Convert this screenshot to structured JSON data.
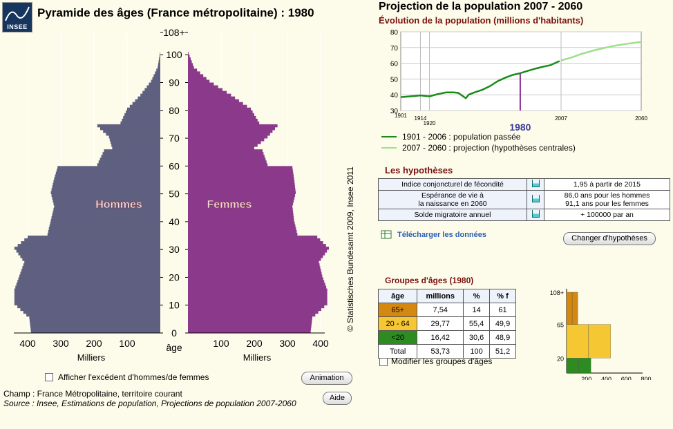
{
  "app": {
    "logo_text": "INSEE",
    "title": "Pyramide des âges (France métropolitaine) : 1980",
    "copyright": "© Statistisches Bundesamt 2009, Insee 2011"
  },
  "pyramid": {
    "labels": {
      "men": "Hommes",
      "women": "Femmes",
      "age_axis": "âge",
      "x_unit": "Milliers"
    },
    "age_ticks": [
      "108+",
      "100",
      "90",
      "80",
      "70",
      "60",
      "50",
      "40",
      "30",
      "20",
      "10",
      "0"
    ],
    "x_ticks_left": [
      "400",
      "300",
      "200",
      "100"
    ],
    "x_ticks_right": [
      "100",
      "200",
      "300",
      "400"
    ],
    "checkbox_excess": "Afficher l'excédent d'hommes/de femmes",
    "animation_button": "Animation",
    "help_button": "Aide",
    "source_line1": "Champ : France Métropolitaine, territoire courant",
    "source_line2": "Source : Insee, Estimations de population, Projections de population 2007-2060"
  },
  "projection": {
    "title": "Projection de la population 2007 - 2060",
    "subtitle": "Évolution de la population (millions d'habitants)",
    "y_ticks": [
      "80",
      "70",
      "60",
      "50",
      "40",
      "30"
    ],
    "x_ticks": [
      "1901",
      "1914",
      "1920",
      "2007",
      "2060"
    ],
    "selected_year": "1980",
    "legend_past": "1901 - 2006 : population passée",
    "legend_projection": "2007 - 2060 : projection (hypothèses centrales)",
    "colors": {
      "past": "#1a8a1a",
      "projection": "#9be08a",
      "marker": "#8a2a9a"
    }
  },
  "hypotheses": {
    "title": "Les hypothèses",
    "rows": [
      {
        "label": "Indice conjoncturel de fécondité",
        "value": "1,95 à partir de 2015"
      },
      {
        "label_line1": "Espérance de vie à",
        "label_line2": "la naissance en 2060",
        "value_line1": "86,0 ans pour les hommes",
        "value_line2": "91,1 ans pour les femmes"
      },
      {
        "label": "Solde migratoire annuel",
        "value": "+ 100000 par an"
      }
    ],
    "download_link": "Télécharger les données",
    "change_button": "Changer d'hypothèses"
  },
  "age_groups": {
    "title": "Groupes d'âges (1980)",
    "headers": [
      "âge",
      "millions",
      "%",
      "% f"
    ],
    "rows": [
      {
        "group": "65+",
        "millions": "7,54",
        "pct": "14",
        "pct_f": "61",
        "color": "#d4880f"
      },
      {
        "group": "20 - 64",
        "millions": "29,77",
        "pct": "55,4",
        "pct_f": "49,9",
        "color": "#f5c733"
      },
      {
        "group": "<20",
        "millions": "16,42",
        "pct": "30,6",
        "pct_f": "48,9",
        "color": "#2e8b22"
      }
    ],
    "total": {
      "group": "Total",
      "millions": "53,73",
      "pct": "100",
      "pct_f": "51,2"
    },
    "checkbox_modify": "Modifier les groupes d'âges",
    "mini_y_ticks": [
      "108+",
      "65",
      "20"
    ],
    "mini_x_ticks": [
      "200",
      "400",
      "600",
      "800"
    ]
  },
  "chart_data": [
    {
      "type": "bar",
      "title": "Pyramide des âges (France métropolitaine) : 1980",
      "xlabel": "Milliers",
      "ylabel": "âge",
      "series": [
        {
          "name": "Hommes",
          "color": "#5f5f80"
        },
        {
          "name": "Femmes",
          "color": "#8b3a8b"
        }
      ],
      "age_profile_men": [
        [
          0,
          390
        ],
        [
          5,
          395
        ],
        [
          10,
          440
        ],
        [
          15,
          440
        ],
        [
          20,
          425
        ],
        [
          25,
          410
        ],
        [
          30,
          440
        ],
        [
          34,
          400
        ],
        [
          35,
          340
        ],
        [
          40,
          330
        ],
        [
          45,
          320
        ],
        [
          50,
          330
        ],
        [
          55,
          320
        ],
        [
          59,
          310
        ],
        [
          60,
          190
        ],
        [
          65,
          170
        ],
        [
          66,
          145
        ],
        [
          70,
          155
        ],
        [
          74,
          190
        ],
        [
          75,
          120
        ],
        [
          80,
          100
        ],
        [
          85,
          60
        ],
        [
          90,
          28
        ],
        [
          95,
          8
        ],
        [
          100,
          1
        ]
      ],
      "age_profile_women": [
        [
          0,
          370
        ],
        [
          5,
          375
        ],
        [
          10,
          420
        ],
        [
          15,
          420
        ],
        [
          20,
          405
        ],
        [
          25,
          395
        ],
        [
          30,
          425
        ],
        [
          34,
          390
        ],
        [
          35,
          330
        ],
        [
          40,
          320
        ],
        [
          45,
          315
        ],
        [
          50,
          325
        ],
        [
          55,
          320
        ],
        [
          59,
          315
        ],
        [
          60,
          240
        ],
        [
          65,
          225
        ],
        [
          66,
          200
        ],
        [
          70,
          240
        ],
        [
          74,
          270
        ],
        [
          75,
          215
        ],
        [
          80,
          190
        ],
        [
          85,
          130
        ],
        [
          90,
          65
        ],
        [
          95,
          18
        ],
        [
          100,
          2
        ]
      ],
      "xlim": [
        0,
        450
      ],
      "ylim": [
        0,
        108
      ]
    },
    {
      "type": "line",
      "title": "Projection de la population 2007 - 2060",
      "ylabel": "millions d'habitants",
      "ylim": [
        30,
        80
      ],
      "series": [
        {
          "name": "1901 - 2006 : population passée",
          "x": [
            1901,
            1910,
            1914,
            1920,
            1925,
            1931,
            1936,
            1939,
            1943,
            1944,
            1946,
            1950,
            1955,
            1960,
            1965,
            1970,
            1975,
            1980,
            1985,
            1990,
            1995,
            2000,
            2006
          ],
          "values": [
            38.5,
            39.2,
            39.6,
            39,
            40.3,
            41.5,
            41.5,
            41.2,
            38.5,
            37.8,
            40.1,
            41.6,
            43.2,
            45.5,
            48.6,
            50.8,
            52.6,
            53.7,
            55.2,
            56.6,
            57.8,
            58.8,
            61.4
          ]
        },
        {
          "name": "2007 - 2060 : projection (hypothèses centrales)",
          "x": [
            2007,
            2015,
            2020,
            2030,
            2040,
            2050,
            2060
          ],
          "values": [
            61.8,
            64,
            65.8,
            68.5,
            70.7,
            72.3,
            73.6
          ]
        }
      ],
      "marker_year": 1980
    },
    {
      "type": "bar",
      "title": "Groupes d'âges (1980)",
      "categories": [
        "<20",
        "20 - 64",
        "65+"
      ],
      "values": [
        16.42,
        29.77,
        7.54
      ]
    }
  ]
}
